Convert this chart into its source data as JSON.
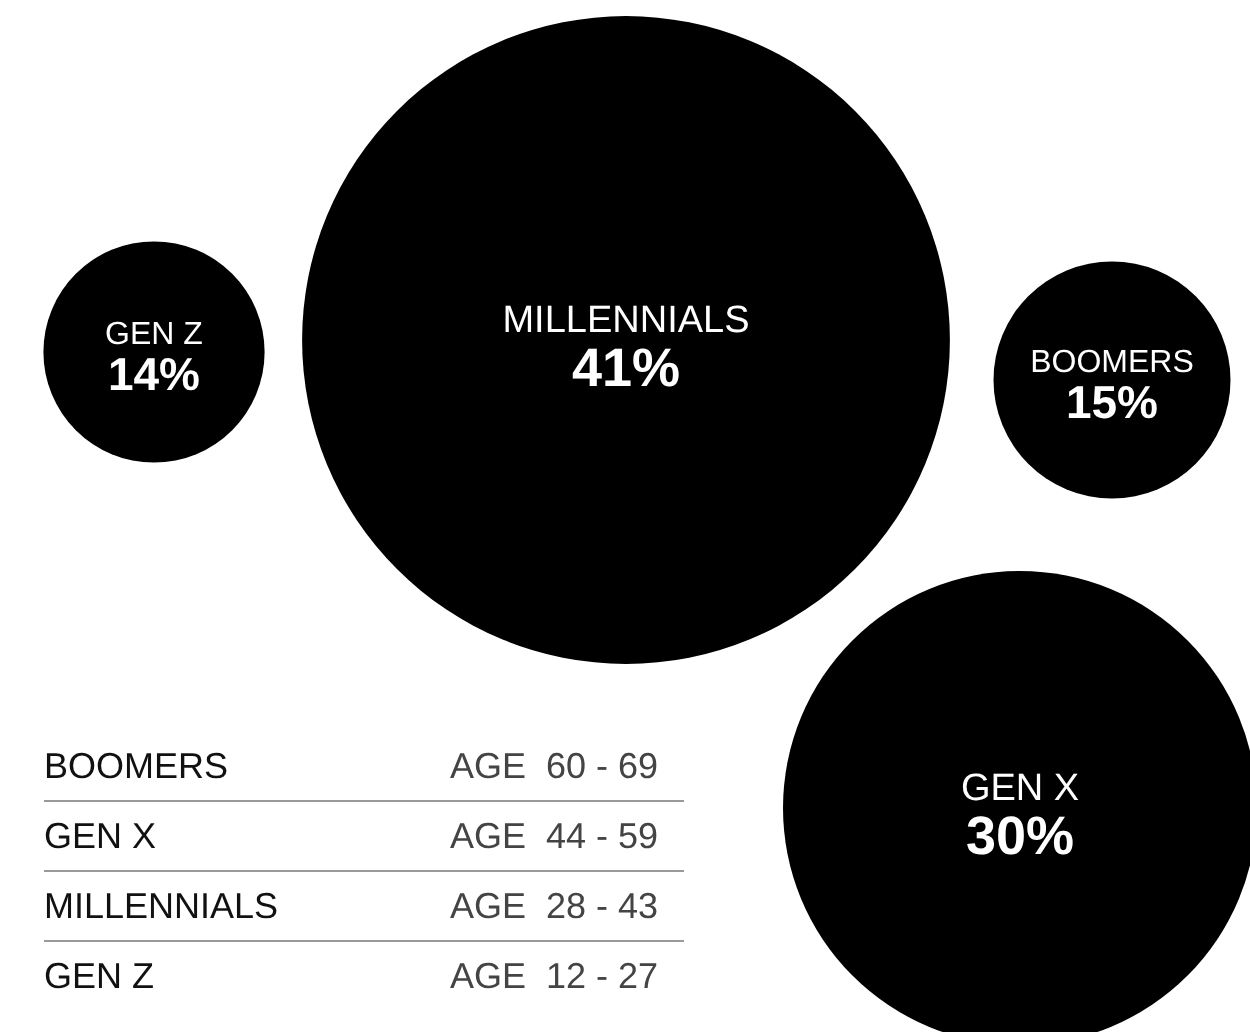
{
  "chart_data": {
    "type": "other",
    "categories": [
      "GEN Z",
      "MILLENNIALS",
      "BOOMERS",
      "GEN X"
    ],
    "values": [
      14,
      41,
      15,
      30
    ],
    "value_labels": [
      "14%",
      "41%",
      "15%",
      "30%"
    ],
    "colors": [
      "#000000",
      "#000000",
      "#000000",
      "#000000"
    ],
    "annotations": [
      "BOOMERS",
      "AGE  60 - 69",
      "GEN X",
      "AGE  44 - 59",
      "MILLENNIALS",
      "AGE  28 - 43",
      "GEN Z",
      "AGE  12 - 27"
    ]
  }
}
